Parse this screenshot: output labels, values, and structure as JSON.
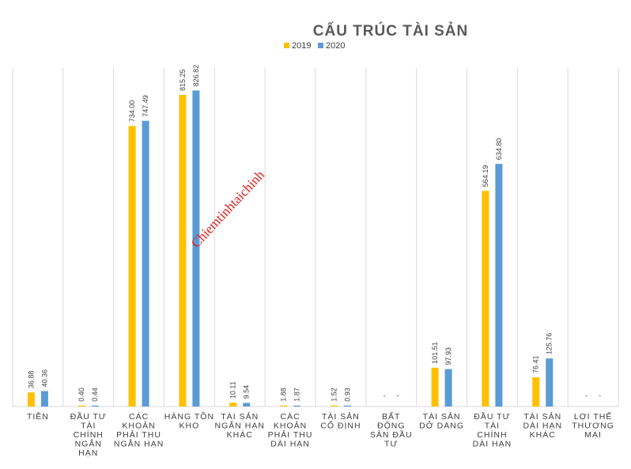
{
  "chart_data": {
    "type": "bar",
    "title": "CẤU TRÚC TÀI SẢN",
    "categories": [
      [
        "TIỀN"
      ],
      [
        "ĐẦU TƯ",
        "TÀI",
        "CHÍNH",
        "NGẮN",
        "HẠN"
      ],
      [
        "CÁC",
        "KHOẢN",
        "PHẢI THU",
        "NGẮN HẠN"
      ],
      [
        "HÀNG TỒN",
        "KHO"
      ],
      [
        "TÀI SẢN",
        "NGẮN HẠN",
        "KHÁC"
      ],
      [
        "CÁC",
        "KHOẢN",
        "PHẢI THU",
        "DÀI HẠN"
      ],
      [
        "TÀI SẢN",
        "CỐ ĐỊNH"
      ],
      [
        "BẤT",
        "ĐỘNG",
        "SẢN ĐẦU",
        "TƯ"
      ],
      [
        "TÀI SẢN",
        "DỞ DANG"
      ],
      [
        "ĐẦU TƯ",
        "TÀI",
        "CHÍNH",
        "DÀI HẠN"
      ],
      [
        "TÀI SẢN",
        "DÀI HẠN",
        "KHÁC"
      ],
      [
        "LỢI THẾ",
        "THƯƠNG",
        "MẠI"
      ]
    ],
    "series": [
      {
        "name": "2019",
        "color": "#FFC000",
        "values": [
          36.88,
          0.4,
          734.0,
          815.25,
          10.11,
          1.88,
          1.52,
          0,
          101.51,
          564.19,
          76.41,
          0
        ],
        "labels": [
          "36.88",
          "0.40",
          "734.00",
          "815.25",
          "10.11",
          "1.88",
          "1.52",
          "-",
          "101.51",
          "564.19",
          "76.41",
          "-"
        ]
      },
      {
        "name": "2020",
        "color": "#5B9BD5",
        "values": [
          40.36,
          0.44,
          747.49,
          826.82,
          9.54,
          1.87,
          0.93,
          0,
          97.93,
          634.8,
          125.76,
          0
        ],
        "labels": [
          "40.36",
          "0.44",
          "747.49",
          "826.82",
          "9.54",
          "1.87",
          "0.93",
          "-",
          "97.93",
          "634.80",
          "125.76",
          "-"
        ]
      }
    ],
    "ylim": [
      0,
      900
    ],
    "grid": "vertical separators",
    "legend": "top"
  },
  "watermark": "Chiemtinhtaichinh"
}
